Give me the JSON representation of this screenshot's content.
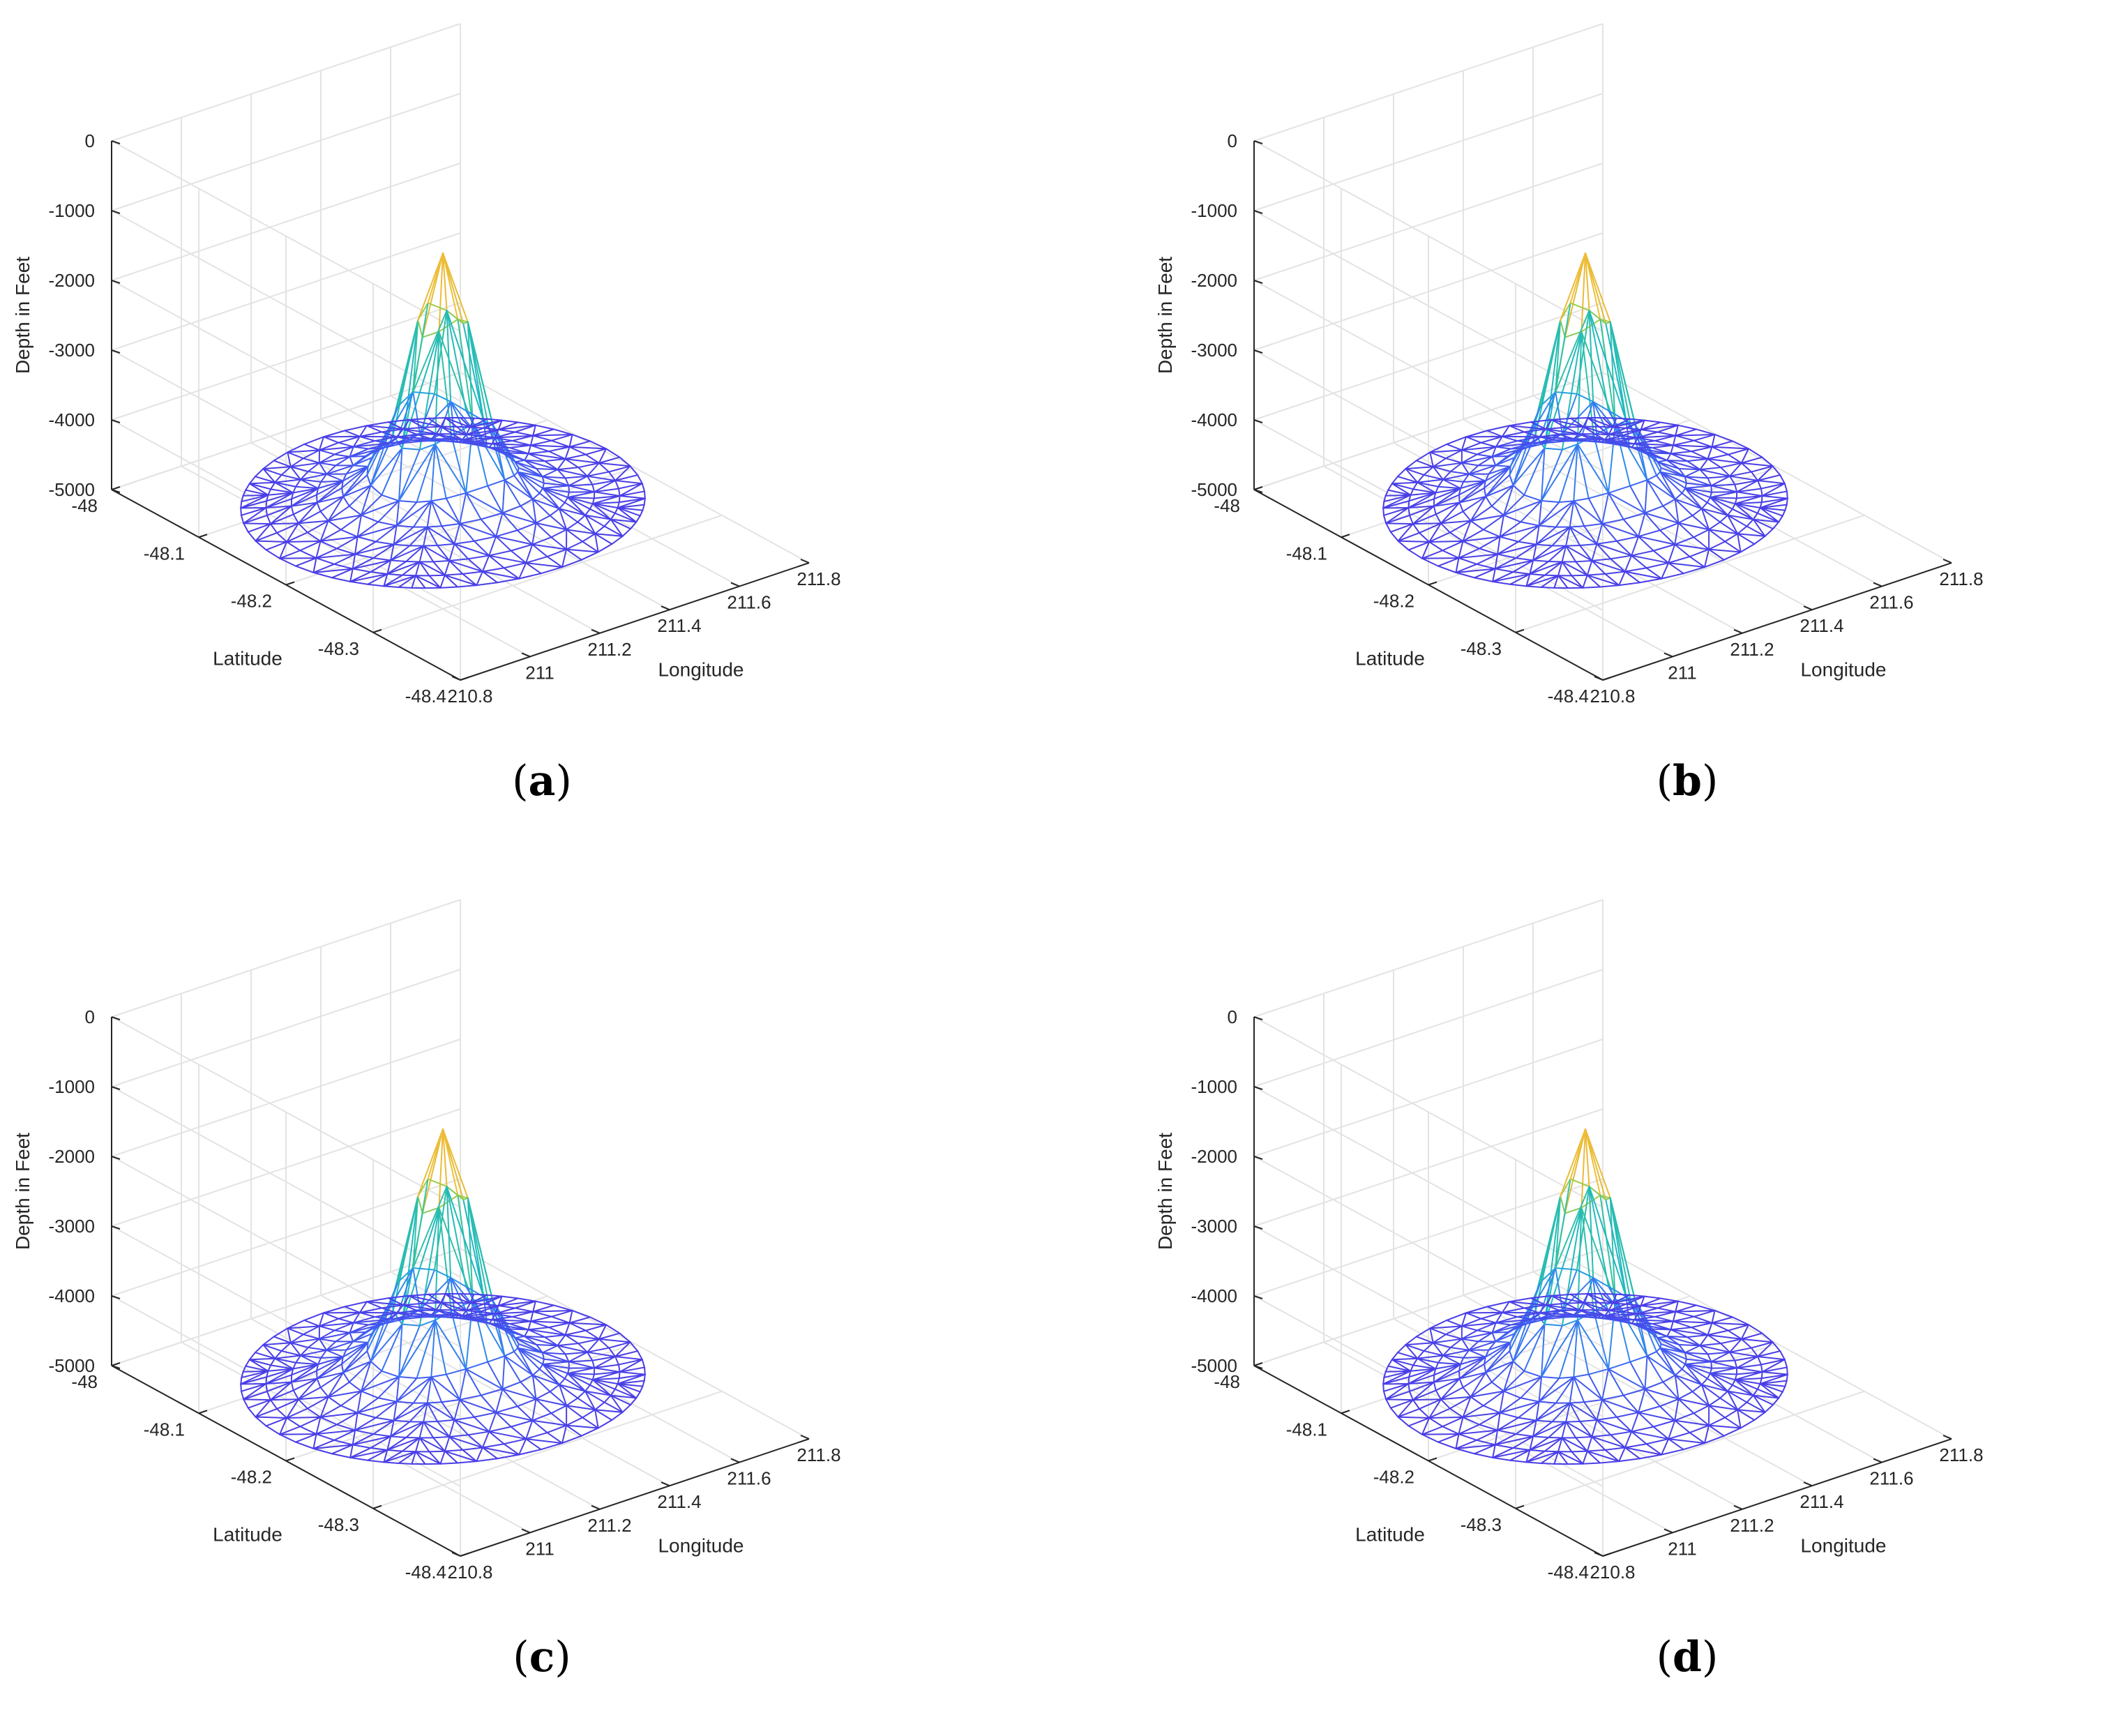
{
  "panels": [
    {
      "id": "a",
      "caption_open": "(",
      "caption_letter": "a",
      "caption_close": ")"
    },
    {
      "id": "b",
      "caption_open": "(",
      "caption_letter": "b",
      "caption_close": ")"
    },
    {
      "id": "c",
      "caption_open": "(",
      "caption_letter": "c",
      "caption_close": ")"
    },
    {
      "id": "d",
      "caption_open": "(",
      "caption_letter": "d",
      "caption_close": ")"
    }
  ],
  "chart_data": [
    {
      "type": "surface-mesh-3d",
      "panel": "a",
      "xlabel": "Longitude",
      "ylabel": "Latitude",
      "zlabel": "Depth in Feet",
      "xlim": [
        210.8,
        211.8
      ],
      "ylim": [
        -48.4,
        -48.0
      ],
      "zlim": [
        -5000,
        0
      ],
      "xticks": [
        210.8,
        211,
        211.2,
        211.4,
        211.6,
        211.8
      ],
      "xtick_labels": [
        "210.8",
        "211",
        "211.2",
        "211.4",
        "211.6",
        "211.8"
      ],
      "yticks": [
        -48,
        -48.1,
        -48.2,
        -48.3,
        -48.4
      ],
      "ytick_labels": [
        "-48",
        "-48.1",
        "-48.2",
        "-48.3",
        "-48.4"
      ],
      "zticks": [
        0,
        -1000,
        -2000,
        -3000,
        -4000,
        -5000
      ],
      "ztick_labels": [
        "0",
        "-1000",
        "-2000",
        "-3000",
        "-4000",
        "-5000"
      ],
      "surface": {
        "base_depth": -4600,
        "peak_depth": -1000,
        "peak_longitude": 211.25,
        "peak_latitude": -48.2,
        "colormap": "parula"
      },
      "grid": true
    },
    {
      "type": "surface-mesh-3d",
      "panel": "b",
      "xlabel": "Longitude",
      "ylabel": "Latitude",
      "zlabel": "Depth in Feet",
      "xlim": [
        210.8,
        211.8
      ],
      "ylim": [
        -48.4,
        -48.0
      ],
      "zlim": [
        -5000,
        0
      ],
      "xticks": [
        210.8,
        211,
        211.2,
        211.4,
        211.6,
        211.8
      ],
      "xtick_labels": [
        "210.8",
        "211",
        "211.2",
        "211.4",
        "211.6",
        "211.8"
      ],
      "yticks": [
        -48,
        -48.1,
        -48.2,
        -48.3,
        -48.4
      ],
      "ytick_labels": [
        "-48",
        "-48.1",
        "-48.2",
        "-48.3",
        "-48.4"
      ],
      "zticks": [
        0,
        -1000,
        -2000,
        -3000,
        -4000,
        -5000
      ],
      "ztick_labels": [
        "0",
        "-1000",
        "-2000",
        "-3000",
        "-4000",
        "-5000"
      ],
      "surface": {
        "base_depth": -4600,
        "peak_depth": -1000,
        "peak_longitude": 211.25,
        "peak_latitude": -48.2,
        "colormap": "parula"
      },
      "grid": true
    },
    {
      "type": "surface-mesh-3d",
      "panel": "c",
      "xlabel": "Longitude",
      "ylabel": "Latitude",
      "zlabel": "Depth in Feet",
      "xlim": [
        210.8,
        211.8
      ],
      "ylim": [
        -48.4,
        -48.0
      ],
      "zlim": [
        -5000,
        0
      ],
      "xticks": [
        210.8,
        211,
        211.2,
        211.4,
        211.6,
        211.8
      ],
      "xtick_labels": [
        "210.8",
        "211",
        "211.2",
        "211.4",
        "211.6",
        "211.8"
      ],
      "yticks": [
        -48,
        -48.1,
        -48.2,
        -48.3,
        -48.4
      ],
      "ytick_labels": [
        "-48",
        "-48.1",
        "-48.2",
        "-48.3",
        "-48.4"
      ],
      "zticks": [
        0,
        -1000,
        -2000,
        -3000,
        -4000,
        -5000
      ],
      "ztick_labels": [
        "0",
        "-1000",
        "-2000",
        "-3000",
        "-4000",
        "-5000"
      ],
      "surface": {
        "base_depth": -4600,
        "peak_depth": -1000,
        "peak_longitude": 211.25,
        "peak_latitude": -48.2,
        "colormap": "parula"
      },
      "grid": true
    },
    {
      "type": "surface-mesh-3d",
      "panel": "d",
      "xlabel": "Longitude",
      "ylabel": "Latitude",
      "zlabel": "Depth in Feet",
      "xlim": [
        210.8,
        211.8
      ],
      "ylim": [
        -48.4,
        -48.0
      ],
      "zlim": [
        -5000,
        0
      ],
      "xticks": [
        210.8,
        211,
        211.2,
        211.4,
        211.6,
        211.8
      ],
      "xtick_labels": [
        "210.8",
        "211",
        "211.2",
        "211.4",
        "211.6",
        "211.8"
      ],
      "yticks": [
        -48,
        -48.1,
        -48.2,
        -48.3,
        -48.4
      ],
      "ytick_labels": [
        "-48",
        "-48.1",
        "-48.2",
        "-48.3",
        "-48.4"
      ],
      "zticks": [
        0,
        -1000,
        -2000,
        -3000,
        -4000,
        -5000
      ],
      "ztick_labels": [
        "0",
        "-1000",
        "-2000",
        "-3000",
        "-4000",
        "-5000"
      ],
      "surface": {
        "base_depth": -4600,
        "peak_depth": -1000,
        "peak_longitude": 211.25,
        "peak_latitude": -48.2,
        "colormap": "parula"
      },
      "grid": true
    }
  ]
}
